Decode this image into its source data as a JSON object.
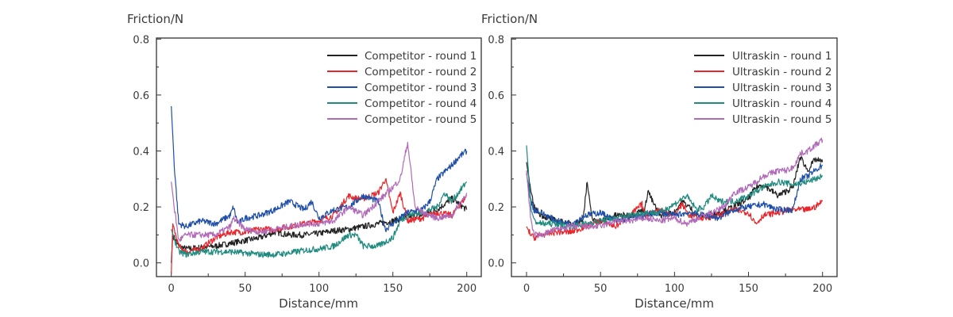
{
  "chart_data": [
    {
      "type": "line",
      "ylabel": "Friction/N",
      "xlabel": "Distance/mm",
      "xlim": [
        -10,
        210
      ],
      "ylim": [
        -0.05,
        0.8
      ],
      "xticks": [
        "0",
        "50",
        "100",
        "150",
        "200"
      ],
      "yticks": [
        "0.0",
        "0.2",
        "0.4",
        "0.6",
        "0.8"
      ],
      "grid": false,
      "legend": "top-right",
      "series": [
        {
          "name": "Competitor - round 1",
          "color": "#222222",
          "x": [
            0,
            1,
            5,
            10,
            20,
            30,
            40,
            50,
            60,
            70,
            80,
            90,
            100,
            110,
            120,
            130,
            140,
            150,
            160,
            170,
            180,
            190,
            195,
            200
          ],
          "y": [
            0.0,
            0.1,
            0.06,
            0.05,
            0.055,
            0.06,
            0.07,
            0.08,
            0.09,
            0.11,
            0.1,
            0.1,
            0.105,
            0.115,
            0.12,
            0.13,
            0.14,
            0.15,
            0.165,
            0.17,
            0.19,
            0.23,
            0.21,
            0.19
          ]
        },
        {
          "name": "Competitor - round 2",
          "color": "#e8262b",
          "x": [
            0,
            1,
            5,
            10,
            20,
            30,
            40,
            50,
            60,
            70,
            80,
            90,
            100,
            110,
            120,
            125,
            130,
            140,
            145,
            150,
            155,
            160,
            170,
            180,
            190,
            200
          ],
          "y": [
            -0.04,
            0.14,
            0.06,
            0.04,
            0.05,
            0.09,
            0.11,
            0.11,
            0.12,
            0.12,
            0.13,
            0.14,
            0.15,
            0.17,
            0.24,
            0.23,
            0.23,
            0.25,
            0.3,
            0.18,
            0.25,
            0.15,
            0.16,
            0.18,
            0.17,
            0.24
          ]
        },
        {
          "name": "Competitor - round 3",
          "color": "#1f4fa8",
          "x": [
            0,
            2,
            5,
            10,
            20,
            30,
            40,
            42,
            45,
            50,
            60,
            70,
            80,
            90,
            95,
            100,
            110,
            120,
            130,
            140,
            145,
            150,
            160,
            170,
            175,
            180,
            190,
            195,
            200
          ],
          "y": [
            0.56,
            0.35,
            0.14,
            0.13,
            0.15,
            0.14,
            0.17,
            0.2,
            0.14,
            0.16,
            0.17,
            0.19,
            0.22,
            0.19,
            0.22,
            0.16,
            0.19,
            0.2,
            0.24,
            0.22,
            0.12,
            0.14,
            0.18,
            0.19,
            0.22,
            0.3,
            0.35,
            0.38,
            0.4
          ]
        },
        {
          "name": "Competitor - round 4",
          "color": "#1f8a7e",
          "x": [
            0,
            5,
            10,
            20,
            30,
            40,
            50,
            60,
            70,
            80,
            90,
            100,
            110,
            120,
            125,
            130,
            140,
            150,
            155,
            160,
            170,
            180,
            185,
            190,
            200
          ],
          "y": [
            0.12,
            0.04,
            0.03,
            0.04,
            0.04,
            0.04,
            0.035,
            0.03,
            0.03,
            0.035,
            0.045,
            0.05,
            0.06,
            0.1,
            0.1,
            0.06,
            0.06,
            0.09,
            0.15,
            0.17,
            0.18,
            0.2,
            0.25,
            0.22,
            0.29
          ]
        },
        {
          "name": "Competitor - round 5",
          "color": "#b06ab8",
          "x": [
            0,
            2,
            5,
            10,
            20,
            30,
            40,
            42,
            50,
            60,
            70,
            80,
            90,
            100,
            110,
            120,
            130,
            140,
            150,
            155,
            160,
            165,
            170,
            180,
            190,
            200
          ],
          "y": [
            0.29,
            0.2,
            0.08,
            0.1,
            0.1,
            0.1,
            0.13,
            0.16,
            0.12,
            0.11,
            0.12,
            0.13,
            0.14,
            0.14,
            0.15,
            0.2,
            0.17,
            0.22,
            0.27,
            0.3,
            0.43,
            0.2,
            0.18,
            0.16,
            0.17,
            0.25
          ]
        }
      ]
    },
    {
      "type": "line",
      "ylabel": "Friction/N",
      "xlabel": "Distance/mm",
      "xlim": [
        -10,
        210
      ],
      "ylim": [
        -0.05,
        0.8
      ],
      "xticks": [
        "0",
        "50",
        "100",
        "150",
        "200"
      ],
      "yticks": [
        "0.0",
        "0.2",
        "0.4",
        "0.6",
        "0.8"
      ],
      "grid": false,
      "legend": "top-right",
      "series": [
        {
          "name": "Ultraskin - round 1",
          "color": "#222222",
          "x": [
            0,
            3,
            5,
            10,
            20,
            30,
            38,
            41,
            43,
            45,
            50,
            60,
            70,
            80,
            82,
            85,
            90,
            100,
            105,
            110,
            115,
            120,
            130,
            140,
            150,
            155,
            160,
            170,
            180,
            185,
            190,
            195,
            200
          ],
          "y": [
            0.36,
            0.25,
            0.2,
            0.17,
            0.15,
            0.14,
            0.15,
            0.29,
            0.2,
            0.15,
            0.15,
            0.17,
            0.17,
            0.19,
            0.26,
            0.22,
            0.17,
            0.18,
            0.22,
            0.2,
            0.17,
            0.17,
            0.18,
            0.2,
            0.23,
            0.27,
            0.28,
            0.24,
            0.27,
            0.38,
            0.33,
            0.37,
            0.36
          ]
        },
        {
          "name": "Ultraskin - round 2",
          "color": "#e8262b",
          "x": [
            0,
            3,
            5,
            10,
            20,
            30,
            40,
            50,
            60,
            70,
            78,
            80,
            90,
            100,
            105,
            110,
            120,
            130,
            140,
            150,
            155,
            160,
            170,
            180,
            190,
            195,
            200
          ],
          "y": [
            0.13,
            0.1,
            0.09,
            0.1,
            0.11,
            0.11,
            0.13,
            0.15,
            0.13,
            0.17,
            0.21,
            0.17,
            0.19,
            0.17,
            0.21,
            0.17,
            0.16,
            0.17,
            0.19,
            0.18,
            0.14,
            0.17,
            0.18,
            0.19,
            0.19,
            0.2,
            0.22
          ]
        },
        {
          "name": "Ultraskin - round 3",
          "color": "#1f4fa8",
          "x": [
            0,
            3,
            5,
            10,
            20,
            30,
            40,
            50,
            60,
            70,
            80,
            90,
            100,
            110,
            120,
            130,
            140,
            150,
            160,
            170,
            180,
            185,
            190,
            200
          ],
          "y": [
            0.32,
            0.22,
            0.19,
            0.18,
            0.15,
            0.14,
            0.17,
            0.18,
            0.15,
            0.16,
            0.17,
            0.18,
            0.17,
            0.18,
            0.17,
            0.16,
            0.19,
            0.2,
            0.21,
            0.19,
            0.19,
            0.3,
            0.31,
            0.35
          ]
        },
        {
          "name": "Ultraskin - round 4",
          "color": "#1f8a7e",
          "x": [
            0,
            3,
            5,
            10,
            20,
            30,
            40,
            50,
            60,
            70,
            80,
            90,
            100,
            108,
            115,
            120,
            125,
            130,
            140,
            150,
            160,
            170,
            180,
            190,
            200
          ],
          "y": [
            0.42,
            0.2,
            0.15,
            0.14,
            0.14,
            0.13,
            0.14,
            0.15,
            0.16,
            0.17,
            0.18,
            0.18,
            0.21,
            0.24,
            0.19,
            0.2,
            0.24,
            0.22,
            0.22,
            0.24,
            0.27,
            0.29,
            0.28,
            0.29,
            0.31
          ]
        },
        {
          "name": "Ultraskin - round 5",
          "color": "#b06ab8",
          "x": [
            0,
            3,
            5,
            10,
            20,
            30,
            40,
            50,
            60,
            70,
            80,
            90,
            100,
            108,
            120,
            130,
            135,
            140,
            150,
            160,
            170,
            175,
            180,
            185,
            190,
            200
          ],
          "y": [
            0.33,
            0.15,
            0.1,
            0.1,
            0.12,
            0.13,
            0.13,
            0.13,
            0.15,
            0.15,
            0.16,
            0.15,
            0.16,
            0.14,
            0.17,
            0.19,
            0.21,
            0.25,
            0.27,
            0.31,
            0.33,
            0.33,
            0.34,
            0.39,
            0.4,
            0.44
          ]
        }
      ]
    }
  ]
}
